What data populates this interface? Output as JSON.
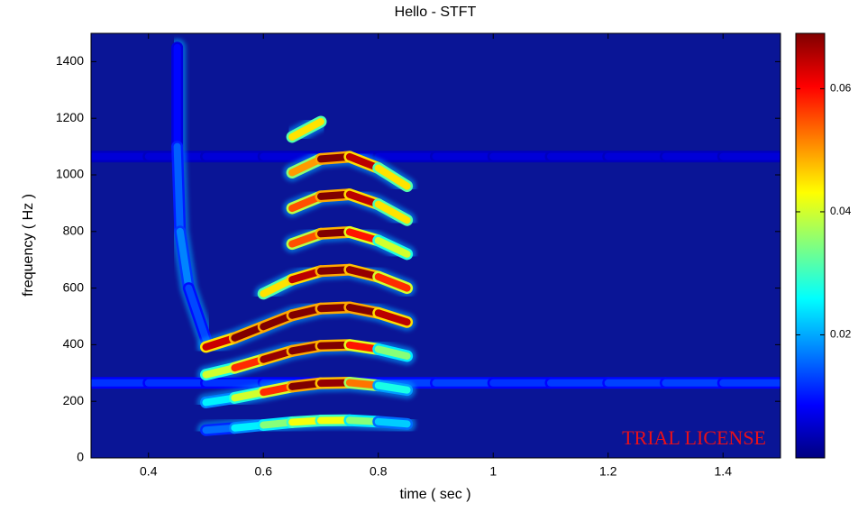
{
  "chart_data": {
    "type": "spectrogram",
    "title": "Hello - STFT",
    "xlabel": "time ( sec )",
    "ylabel": "frequency ( Hz )",
    "xlim": [
      0.3,
      1.5
    ],
    "ylim": [
      0,
      1500
    ],
    "xticks": [
      0.4,
      0.6,
      0.8,
      1,
      1.2,
      1.4
    ],
    "yticks": [
      0,
      200,
      400,
      600,
      800,
      1000,
      1200,
      1400
    ],
    "clim": [
      0,
      0.069
    ],
    "cticks": [
      0.02,
      0.04,
      0.06
    ],
    "colormap": [
      "#000080",
      "#0000ff",
      "#0080ff",
      "#00ffff",
      "#80ff80",
      "#ffff00",
      "#ff8000",
      "#ff0000",
      "#800000"
    ],
    "background": "#0a1596",
    "annotation": "TRIAL LICENSE",
    "series": [
      {
        "x": [
          0.3,
          0.4,
          0.5,
          0.6,
          0.7,
          0.8,
          0.9,
          1,
          1.1,
          1.2,
          1.3,
          1.4,
          1.5
        ],
        "values": [
          265,
          265,
          265,
          265,
          265,
          265,
          265,
          265,
          265,
          265,
          265,
          265,
          265
        ],
        "z": [
          0.012,
          0.012,
          0.012,
          0.012,
          0.012,
          0.012,
          0.014,
          0.012,
          0.012,
          0.013,
          0.013,
          0.013,
          0.012
        ]
      },
      {
        "x": [
          0.3,
          0.4,
          0.5,
          0.6,
          0.7,
          0.8,
          0.9,
          1,
          1.1,
          1.2,
          1.3,
          1.4,
          1.5
        ],
        "values": [
          1065,
          1065,
          1065,
          1065,
          1065,
          1065,
          1065,
          1065,
          1065,
          1065,
          1065,
          1065,
          1065
        ],
        "z": [
          0.006,
          0.006,
          0.006,
          0.006,
          0.006,
          0.006,
          0.006,
          0.006,
          0.006,
          0.006,
          0.006,
          0.006,
          0.006
        ]
      },
      {
        "x": [
          0.45,
          0.45,
          0.455,
          0.47,
          0.5
        ],
        "values": [
          1450,
          1100,
          800,
          600,
          420
        ],
        "z": [
          0.008,
          0.01,
          0.02,
          0.015,
          0.012
        ]
      },
      {
        "x": [
          0.5,
          0.55,
          0.6,
          0.65,
          0.7,
          0.75,
          0.8,
          0.85
        ],
        "values": [
          98,
          106,
          116,
          126,
          132,
          133,
          128,
          120
        ],
        "z": [
          0.012,
          0.02,
          0.03,
          0.04,
          0.045,
          0.04,
          0.03,
          0.015
        ]
      },
      {
        "x": [
          0.5,
          0.55,
          0.6,
          0.65,
          0.7,
          0.75,
          0.8,
          0.85
        ],
        "values": [
          196,
          212,
          232,
          252,
          264,
          266,
          256,
          240
        ],
        "z": [
          0.015,
          0.035,
          0.045,
          0.07,
          0.07,
          0.065,
          0.04,
          0.015
        ]
      },
      {
        "x": [
          0.5,
          0.55,
          0.6,
          0.65,
          0.7,
          0.75,
          0.8,
          0.85
        ],
        "values": [
          294,
          318,
          348,
          378,
          396,
          399,
          384,
          360
        ],
        "z": [
          0.03,
          0.05,
          0.065,
          0.07,
          0.07,
          0.068,
          0.05,
          0.02
        ]
      },
      {
        "x": [
          0.5,
          0.55,
          0.6,
          0.65,
          0.7,
          0.75,
          0.8,
          0.85
        ],
        "values": [
          392,
          424,
          464,
          504,
          528,
          532,
          512,
          480
        ],
        "z": [
          0.06,
          0.068,
          0.07,
          0.07,
          0.07,
          0.07,
          0.07,
          0.06
        ]
      },
      {
        "x": [
          0.5,
          0.55,
          0.6,
          0.65,
          0.7,
          0.75,
          0.8,
          0.85
        ],
        "values": [
          null,
          null,
          580,
          630,
          660,
          665,
          640,
          600
        ],
        "z": [
          null,
          null,
          0.03,
          0.06,
          0.07,
          0.07,
          0.065,
          0.05
        ]
      },
      {
        "x": [
          0.5,
          0.55,
          0.6,
          0.65,
          0.7,
          0.75,
          0.8,
          0.85
        ],
        "values": [
          null,
          null,
          null,
          756,
          792,
          798,
          768,
          720
        ],
        "z": [
          null,
          null,
          null,
          0.04,
          0.07,
          0.068,
          0.05,
          0.03
        ]
      },
      {
        "x": [
          0.5,
          0.55,
          0.6,
          0.65,
          0.7,
          0.75,
          0.8,
          0.85
        ],
        "values": [
          null,
          null,
          null,
          882,
          924,
          931,
          896,
          840
        ],
        "z": [
          null,
          null,
          null,
          0.04,
          0.07,
          0.07,
          0.06,
          0.03
        ]
      },
      {
        "x": [
          0.5,
          0.55,
          0.6,
          0.65,
          0.7,
          0.75,
          0.8,
          0.85
        ],
        "values": [
          null,
          null,
          null,
          1008,
          1056,
          1064,
          1024,
          960
        ],
        "z": [
          null,
          null,
          null,
          0.03,
          0.07,
          0.07,
          0.06,
          0.03
        ]
      },
      {
        "x": [
          0.5,
          0.55,
          0.6,
          0.65,
          0.7,
          0.75,
          0.8,
          0.85
        ],
        "values": [
          null,
          null,
          null,
          1134,
          1188,
          null,
          null,
          null
        ],
        "z": [
          null,
          null,
          null,
          0.02,
          0.07,
          null,
          null,
          null
        ]
      }
    ]
  }
}
